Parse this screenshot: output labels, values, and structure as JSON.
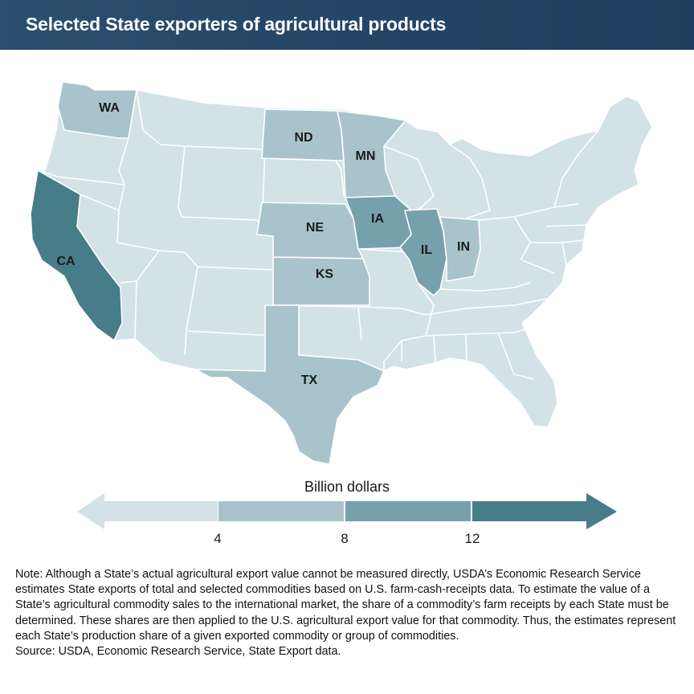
{
  "title": "Selected State exporters of agricultural products",
  "legend": {
    "title": "Billion dollars",
    "ticks": [
      "4",
      "8",
      "12"
    ],
    "tick_values": [
      4,
      8,
      12
    ],
    "bin_colors": [
      "#d2e2e7",
      "#a8c3cc",
      "#76a0ac",
      "#477c89"
    ]
  },
  "border_color": "#ffffff",
  "states": [
    {
      "abbr": "WA",
      "bin": 1
    },
    {
      "abbr": "CA",
      "bin": 3
    },
    {
      "abbr": "ND",
      "bin": 1
    },
    {
      "abbr": "MN",
      "bin": 1
    },
    {
      "abbr": "NE",
      "bin": 1
    },
    {
      "abbr": "IA",
      "bin": 2
    },
    {
      "abbr": "IL",
      "bin": 2
    },
    {
      "abbr": "IN",
      "bin": 1
    },
    {
      "abbr": "KS",
      "bin": 1
    },
    {
      "abbr": "TX",
      "bin": 1
    }
  ],
  "note": "Note: Although a State’s actual agricultural export value cannot be measured directly, USDA’s Economic Research Service estimates State exports of total and selected commodities based on U.S. farm-cash-receipts data. To estimate the value of a State’s agricultural commodity sales to the international market, the share of a commodity’s farm receipts by each State must be determined. These shares are then applied to the U.S. agricultural export value for that commodity. Thus, the estimates represent each State’s production share of a given exported commodity or group of commodities.",
  "source": "Source: USDA, Economic Research Service, State Export data."
}
